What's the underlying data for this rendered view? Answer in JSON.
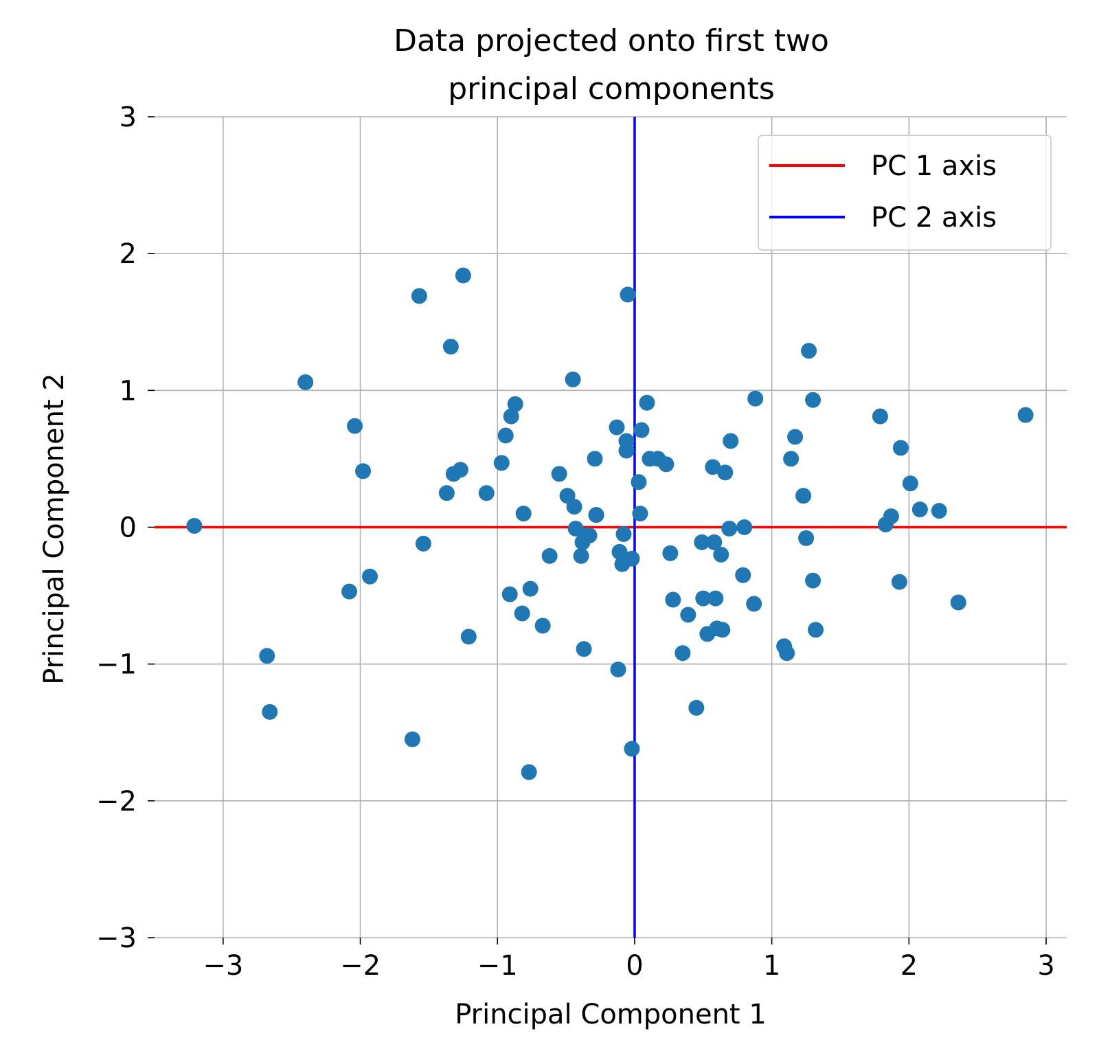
{
  "chart_data": {
    "type": "scatter",
    "title_lines": [
      "Data projected onto first two",
      "principal components"
    ],
    "xlabel": "Principal Component 1",
    "ylabel": "Principal Component 2",
    "xlim": [
      -3.5,
      3.15
    ],
    "ylim": [
      -3,
      3
    ],
    "xticks": [
      -3,
      -2,
      -1,
      0,
      1,
      2,
      3
    ],
    "xtick_labels": [
      "−3",
      "−2",
      "−1",
      "0",
      "1",
      "2",
      "3"
    ],
    "yticks": [
      -3,
      -2,
      -1,
      0,
      1,
      2,
      3
    ],
    "ytick_labels": [
      "−3",
      "−2",
      "−1",
      "0",
      "1",
      "2",
      "3"
    ],
    "grid": true,
    "legend_position": "top-right",
    "point_color": "#1f77b4",
    "series": [
      {
        "name": "",
        "x": [
          -3.21,
          -2.68,
          -2.66,
          -2.4,
          -2.08,
          -2.04,
          -1.98,
          -1.93,
          -1.62,
          -1.57,
          -1.54,
          -1.37,
          -1.34,
          -1.32,
          -1.27,
          -1.25,
          -1.21,
          -1.08,
          -0.97,
          -0.94,
          -0.91,
          -0.9,
          -0.87,
          -0.82,
          -0.81,
          -0.76,
          -0.77,
          -0.67,
          -0.62,
          -0.55,
          -0.49,
          -0.45,
          -0.44,
          -0.43,
          -0.39,
          -0.38,
          -0.37,
          -0.36,
          -0.33,
          -0.29,
          -0.28,
          -0.28,
          -0.13,
          -0.12,
          -0.11,
          -0.09,
          -0.08,
          -0.06,
          -0.06,
          -0.05,
          -0.02,
          -0.02,
          0.03,
          0.04,
          0.05,
          0.09,
          0.11,
          0.17,
          0.23,
          0.26,
          0.28,
          0.35,
          0.39,
          0.45,
          0.49,
          0.5,
          0.53,
          0.57,
          0.58,
          0.59,
          0.6,
          0.63,
          0.64,
          0.66,
          0.69,
          0.7,
          0.79,
          0.8,
          0.87,
          0.88,
          1.09,
          1.11,
          1.14,
          1.17,
          1.23,
          1.25,
          1.27,
          1.3,
          1.3,
          1.32,
          1.79,
          1.83,
          1.87,
          1.93,
          1.94,
          2.01,
          2.08,
          2.22,
          2.36,
          2.85
        ],
        "y": [
          0.01,
          -0.94,
          -1.35,
          1.06,
          -0.47,
          0.74,
          0.41,
          -0.36,
          -1.55,
          1.69,
          -0.12,
          0.25,
          1.32,
          0.39,
          0.42,
          1.84,
          -0.8,
          0.25,
          0.47,
          0.67,
          -0.49,
          0.81,
          0.9,
          -0.63,
          0.1,
          -0.45,
          -1.79,
          -0.72,
          -0.21,
          0.39,
          0.23,
          1.08,
          0.15,
          -0.01,
          -0.21,
          -0.11,
          -0.89,
          -0.06,
          -0.06,
          0.5,
          0.09,
          0.09,
          0.73,
          -1.04,
          -0.18,
          -0.27,
          -0.05,
          0.63,
          0.56,
          1.7,
          -1.62,
          -0.23,
          0.33,
          0.1,
          0.71,
          0.91,
          0.5,
          0.5,
          0.46,
          -0.19,
          -0.53,
          -0.92,
          -0.64,
          -1.32,
          -0.11,
          -0.52,
          -0.78,
          0.44,
          -0.11,
          -0.52,
          -0.74,
          -0.2,
          -0.75,
          0.4,
          -0.01,
          0.63,
          -0.35,
          0.0,
          -0.56,
          0.94,
          -0.87,
          -0.92,
          0.5,
          0.66,
          0.23,
          -0.08,
          1.29,
          0.93,
          -0.39,
          -0.75,
          0.81,
          0.02,
          0.08,
          -0.4,
          0.58,
          0.32,
          0.13,
          0.12,
          -0.55,
          0.82
        ]
      }
    ],
    "reference_lines": [
      {
        "name": "PC 1 axis",
        "orientation": "horizontal",
        "value": 0,
        "color": "#ff0000"
      },
      {
        "name": "PC 2 axis",
        "orientation": "vertical",
        "value": 0,
        "color": "#0000ff"
      }
    ]
  }
}
